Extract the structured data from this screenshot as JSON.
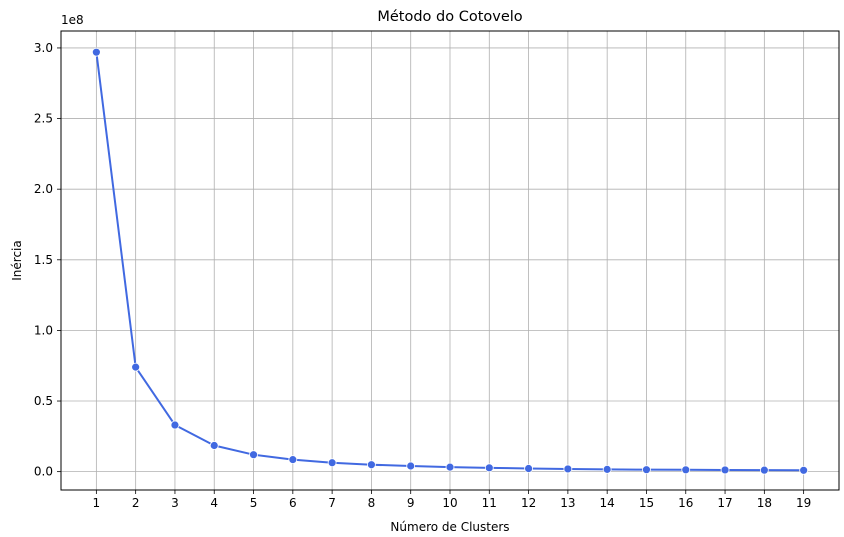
{
  "chart_data": {
    "type": "line",
    "title": "Método do Cotovelo",
    "xlabel": "Número de Clusters",
    "ylabel": "Inércia",
    "y_offset_label": "1e8",
    "x": [
      1,
      2,
      3,
      4,
      5,
      6,
      7,
      8,
      9,
      10,
      11,
      12,
      13,
      14,
      15,
      16,
      17,
      18,
      19
    ],
    "series": [
      {
        "values": [
          2.97,
          0.74,
          0.33,
          0.185,
          0.12,
          0.085,
          0.063,
          0.049,
          0.04,
          0.032,
          0.027,
          0.022,
          0.019,
          0.016,
          0.014,
          0.013,
          0.012,
          0.0105,
          0.0095
        ],
        "color": "#4169e1",
        "marker": "circle"
      }
    ],
    "xlim": [
      0.1,
      19.9
    ],
    "ylim": [
      -0.13,
      3.12
    ],
    "x_ticks": [
      1,
      2,
      3,
      4,
      5,
      6,
      7,
      8,
      9,
      10,
      11,
      12,
      13,
      14,
      15,
      16,
      17,
      18,
      19
    ],
    "y_ticks": [
      0.0,
      0.5,
      1.0,
      1.5,
      2.0,
      2.5,
      3.0
    ],
    "y_tick_labels": [
      "0.0",
      "0.5",
      "1.0",
      "1.5",
      "2.0",
      "2.5",
      "3.0"
    ],
    "grid": true
  }
}
